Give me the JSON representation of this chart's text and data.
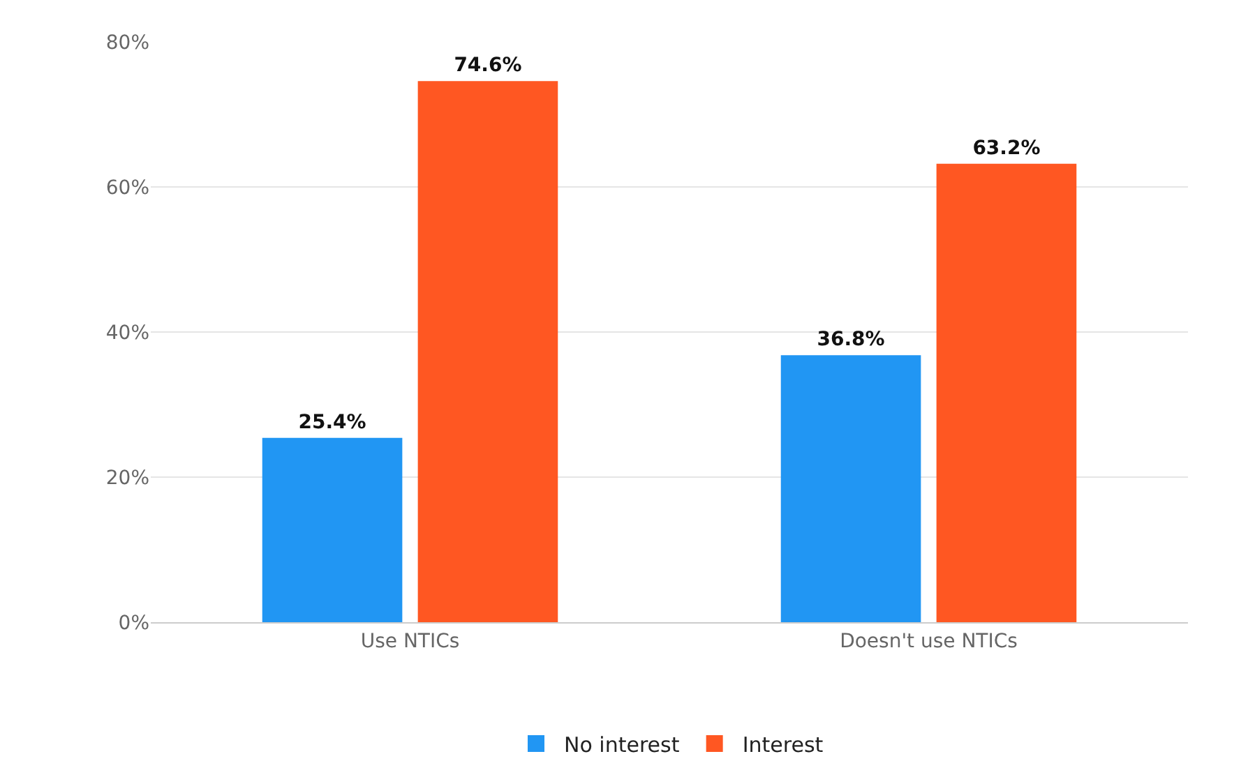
{
  "chart_data": {
    "type": "bar",
    "categories": [
      "Use NTICs",
      "Doesn't use NTICs"
    ],
    "series": [
      {
        "name": "No interest",
        "color": "#2196f3",
        "values": [
          25.4,
          36.8
        ],
        "value_labels": [
          "25.4%",
          "36.8%"
        ]
      },
      {
        "name": "Interest",
        "color": "#ff5722",
        "values": [
          74.6,
          63.2
        ],
        "value_labels": [
          "74.6%",
          "63.2%"
        ]
      }
    ],
    "ylim": [
      0,
      80
    ],
    "yticks": [
      {
        "value": 0,
        "label": "0%"
      },
      {
        "value": 20,
        "label": "20%"
      },
      {
        "value": 40,
        "label": "40%"
      },
      {
        "value": 60,
        "label": "60%"
      },
      {
        "value": 80,
        "label": "80%"
      }
    ],
    "grid": "y",
    "legend": "bottom"
  }
}
